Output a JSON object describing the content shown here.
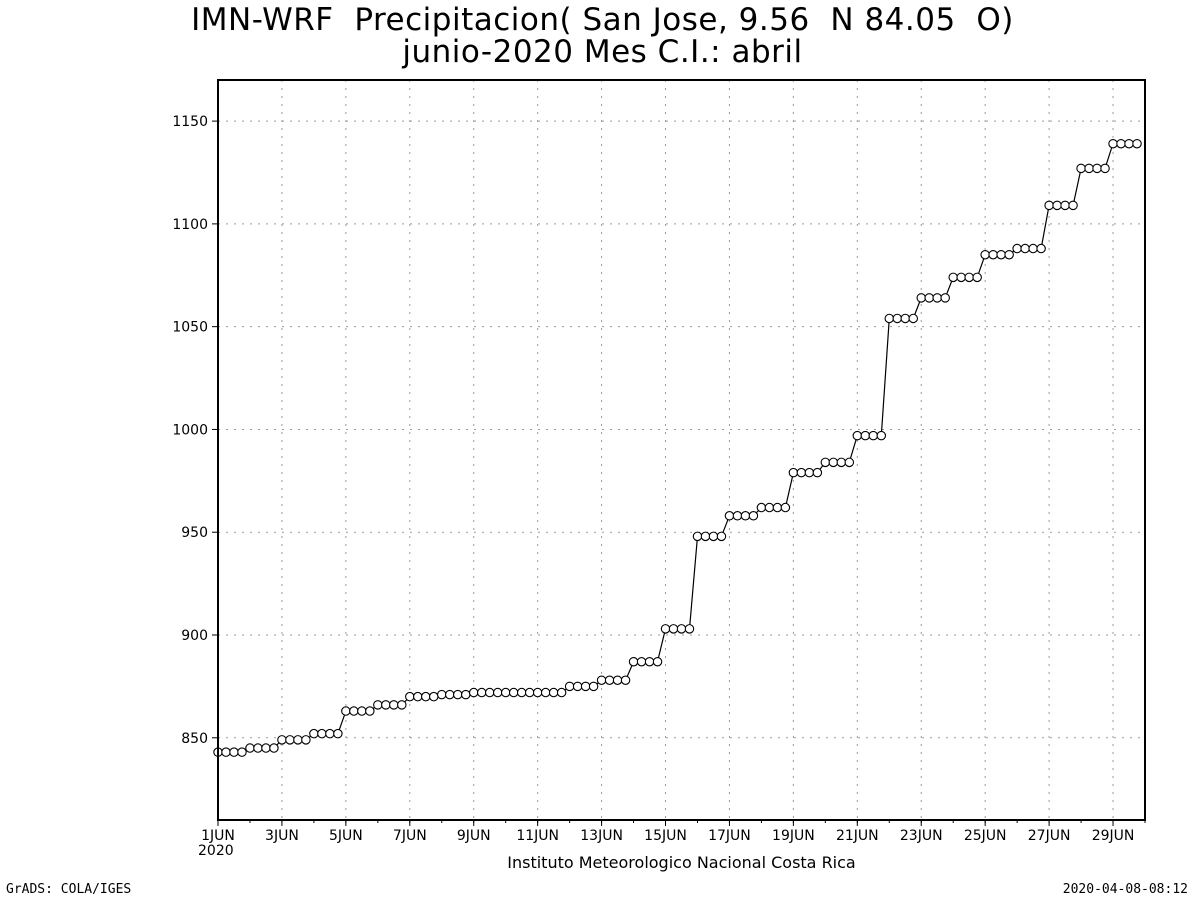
{
  "chart_data": {
    "type": "line",
    "title": "IMN-WRF  Precipitacion( San Jose, 9.56  N 84.05  O)",
    "subtitle": "junio-2020 Mes C.I.: abril",
    "xlabel": "",
    "ylabel": "",
    "x_tick_labels": [
      "1JUN",
      "3JUN",
      "5JUN",
      "7JUN",
      "9JUN",
      "11JUN",
      "13JUN",
      "15JUN",
      "17JUN",
      "19JUN",
      "21JUN",
      "23JUN",
      "25JUN",
      "27JUN",
      "29JUN"
    ],
    "x_year_label": "2020",
    "y_ticks": [
      850,
      900,
      950,
      1000,
      1050,
      1100,
      1150
    ],
    "ylim": [
      810,
      1170
    ],
    "xlim_days": [
      1,
      30
    ],
    "grid": true,
    "marker": "open-circle",
    "series": [
      {
        "name": "",
        "x_step_hours": 6,
        "x_start": "2020-06-01 00Z",
        "values": [
          843,
          843,
          843,
          843,
          845,
          845,
          845,
          845,
          849,
          849,
          849,
          849,
          852,
          852,
          852,
          852,
          863,
          863,
          863,
          863,
          866,
          866,
          866,
          866,
          870,
          870,
          870,
          870,
          871,
          871,
          871,
          871,
          872,
          872,
          872,
          872,
          872,
          872,
          872,
          872,
          872,
          872,
          872,
          872,
          875,
          875,
          875,
          875,
          878,
          878,
          878,
          878,
          887,
          887,
          887,
          887,
          903,
          903,
          903,
          903,
          948,
          948,
          948,
          948,
          958,
          958,
          958,
          958,
          962,
          962,
          962,
          962,
          979,
          979,
          979,
          979,
          984,
          984,
          984,
          984,
          997,
          997,
          997,
          997,
          1054,
          1054,
          1054,
          1054,
          1064,
          1064,
          1064,
          1064,
          1074,
          1074,
          1074,
          1074,
          1085,
          1085,
          1085,
          1085,
          1088,
          1088,
          1088,
          1088,
          1109,
          1109,
          1109,
          1109,
          1127,
          1127,
          1127,
          1127,
          1139,
          1139,
          1139,
          1139
        ]
      }
    ]
  },
  "footer": {
    "left": "GrADS: COLA/IGES",
    "right": "2020-04-08-08:12",
    "institution": "Instituto Meteorologico Nacional Costa Rica"
  }
}
